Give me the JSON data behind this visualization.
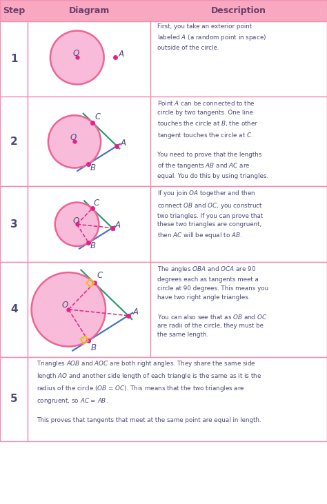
{
  "header_bg": "#f8a8c0",
  "row_alt_bg": "#fce4ec",
  "row_bg": "#ffffff",
  "header_text_color": "#6a3d6a",
  "body_text_color": "#4a4a7a",
  "circle_fill": "#f8bbd9",
  "circle_edge": "#f06292",
  "dot_color": "#e91e8c",
  "tangent_color_green": "#2e9b6e",
  "tangent_color_blue": "#4472c4",
  "dashed_color": "#e91e8c",
  "right_angle_color": "#e8c010",
  "grid_color": "#f48fb1",
  "title_step": "Step",
  "title_diagram": "Diagram",
  "title_description": "Description",
  "step_labels": [
    "1",
    "2",
    "3",
    "4",
    "5"
  ]
}
